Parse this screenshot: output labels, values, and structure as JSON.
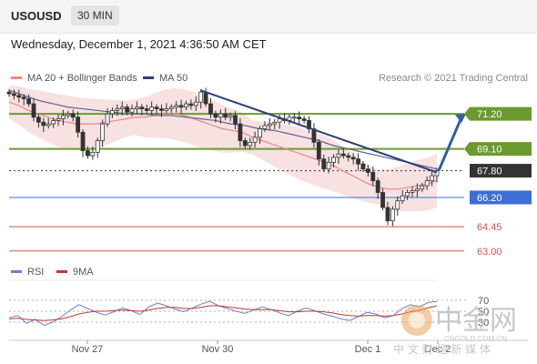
{
  "header": {
    "symbol": "USOUSD",
    "timeframe": "30 MIN"
  },
  "datetime": "Wednesday, December 1, 2021 4:36:50 AM CET",
  "legend": [
    {
      "label": "MA 20 + Bollinger Bands",
      "color": "#e8888a"
    },
    {
      "label": "MA 50",
      "color": "#2d3e7a"
    }
  ],
  "copyright": "Research © 2021 Trading Central",
  "indicator_legend": [
    {
      "label": "RSI",
      "color": "#6b7fd4"
    },
    {
      "label": "9MA",
      "color": "#c0392b"
    }
  ],
  "watermark": {
    "main": "中金网",
    "sub": "CNGOLD.COM.CN",
    "line": "中 文 财 经 新 媒 体"
  },
  "chart_data": [
    {
      "type": "candlestick",
      "title": "USOUSD",
      "x_ticks": [
        "Nov 27",
        "Nov 30",
        "Dec 1",
        "Dec 2"
      ],
      "price_range": [
        62.5,
        73.0
      ],
      "levels": [
        {
          "value": 71.2,
          "label": "71.20",
          "kind": "resistance",
          "color": "#6b9a2e",
          "box": "green"
        },
        {
          "value": 69.1,
          "label": "69.10",
          "kind": "resistance",
          "color": "#6b9a2e",
          "box": "green"
        },
        {
          "value": 67.8,
          "label": "67.80",
          "kind": "last-price",
          "color": "#333333",
          "box": "dark"
        },
        {
          "value": 66.2,
          "label": "66.20",
          "kind": "pivot",
          "color": "#3b6fd4",
          "box": "blue"
        },
        {
          "value": 64.45,
          "label": "64.45",
          "kind": "support",
          "color": "#d9534f",
          "box": "none"
        },
        {
          "value": 63.0,
          "label": "63.00",
          "kind": "support",
          "color": "#d9534f",
          "box": "none"
        }
      ],
      "closes": [
        72.4,
        72.3,
        72.2,
        72.1,
        71.8,
        71.0,
        70.7,
        70.5,
        70.6,
        70.8,
        70.9,
        71.1,
        71.2,
        71.0,
        70.1,
        69.0,
        68.7,
        68.9,
        69.6,
        70.6,
        71.2,
        71.4,
        71.5,
        71.6,
        71.3,
        71.5,
        71.6,
        71.5,
        71.4,
        71.6,
        71.5,
        71.4,
        71.5,
        71.6,
        71.7,
        71.6,
        71.8,
        71.7,
        71.9,
        72.5,
        71.8,
        71.2,
        71.0,
        71.2,
        71.0,
        71.1,
        70.6,
        69.6,
        69.3,
        69.5,
        69.8,
        70.3,
        70.5,
        70.6,
        70.7,
        70.9,
        70.8,
        71.0,
        71.0,
        70.9,
        70.8,
        70.3,
        69.5,
        68.5,
        67.9,
        68.3,
        68.6,
        68.8,
        68.7,
        68.6,
        68.5,
        68.2,
        67.9,
        67.7,
        67.2,
        66.5,
        65.6,
        64.8,
        65.5,
        66.0,
        66.3,
        66.5,
        66.6,
        66.7,
        66.9,
        67.2,
        67.5,
        67.8
      ],
      "ma20": [
        71.9,
        71.7,
        71.4,
        71.2,
        71.0,
        70.8,
        70.7,
        70.6,
        70.6,
        70.6,
        70.7,
        70.8,
        70.9,
        71.0,
        71.0,
        71.1,
        71.2,
        71.2,
        71.1,
        70.9,
        70.7,
        70.5,
        70.3,
        70.2,
        70.1,
        69.8,
        69.6,
        69.4,
        69.2,
        69.0,
        68.8,
        68.6,
        68.4,
        68.2,
        67.9,
        67.6,
        67.3,
        67.0,
        66.8,
        66.7,
        66.7,
        66.8,
        66.9,
        67.0,
        67.2
      ],
      "ma50": [
        72.6,
        72.3,
        72.0,
        71.8,
        71.6,
        71.5,
        71.4,
        71.3,
        71.2,
        71.2,
        71.1,
        71.1,
        71.0,
        70.9,
        70.8,
        70.6,
        70.5,
        70.3,
        70.2,
        70.0,
        69.8,
        69.6,
        69.3,
        69.1,
        68.9,
        68.7,
        68.5,
        68.3,
        68.1,
        67.9
      ],
      "trendline": {
        "from": 72.6,
        "to": 67.7
      },
      "projection": {
        "from": 67.8,
        "to": 71.2
      }
    },
    {
      "type": "line",
      "title": "RSI",
      "y_ticks": [
        70,
        50,
        30
      ],
      "ylim": [
        0,
        100
      ],
      "series": [
        {
          "name": "RSI",
          "values": [
            38,
            42,
            28,
            35,
            24,
            30,
            40,
            52,
            62,
            55,
            48,
            43,
            49,
            56,
            51,
            44,
            58,
            65,
            60,
            54,
            49,
            56,
            63,
            68,
            60,
            55,
            50,
            46,
            52,
            58,
            53,
            47,
            42,
            50,
            56,
            51,
            45,
            41,
            36,
            33,
            40,
            48,
            45,
            38,
            42,
            55,
            62,
            58,
            66,
            68
          ]
        },
        {
          "name": "9MA",
          "values": [
            36,
            37,
            35,
            34,
            33,
            34,
            36,
            40,
            45,
            48,
            50,
            50,
            51,
            52,
            51,
            50,
            52,
            55,
            57,
            57,
            55,
            55,
            57,
            60,
            60,
            58,
            56,
            54,
            53,
            53,
            53,
            51,
            49,
            49,
            50,
            50,
            49,
            47,
            44,
            42,
            41,
            42,
            42,
            41,
            42,
            45,
            49,
            52,
            56,
            60
          ]
        }
      ]
    }
  ]
}
